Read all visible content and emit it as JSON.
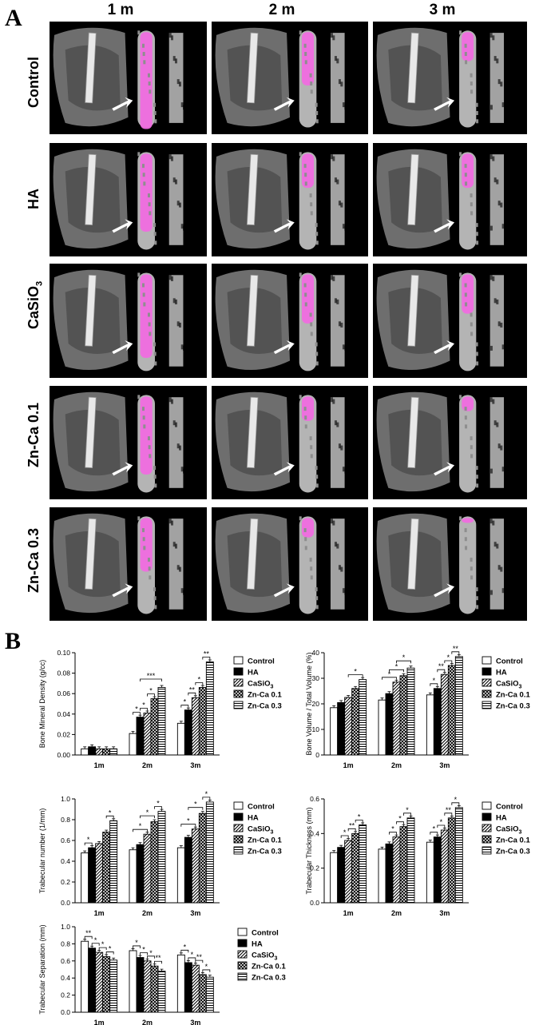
{
  "panel_a": {
    "letter": "A",
    "columns": [
      "1 m",
      "2 m",
      "3 m"
    ],
    "rows": [
      "Control",
      "HA",
      "CaSiO",
      "Zn-Ca 0.1",
      "Zn-Ca 0.3"
    ],
    "row_sub": [
      "",
      "",
      "3",
      "",
      ""
    ]
  },
  "panel_b": {
    "letter": "B"
  },
  "colors": {
    "implant_pink": "#f06de0",
    "bone_gray": "#b4b4b4",
    "background": "#000000"
  },
  "chart_data": [
    {
      "type": "bar",
      "ylabel": "Bone Mineral Density (g/cc)",
      "categories": [
        "1m",
        "2m",
        "3m"
      ],
      "ylim": [
        0,
        0.1
      ],
      "yticks": [
        "0.00",
        "0.02",
        "0.04",
        "0.06",
        "0.08",
        "0.10"
      ],
      "ytick_values": [
        0,
        0.02,
        0.04,
        0.06,
        0.08,
        0.1
      ],
      "legend_position": "right",
      "series": [
        {
          "name": "Control",
          "sub": "",
          "values": [
            0.006,
            0.021,
            0.031
          ]
        },
        {
          "name": "HA",
          "sub": "",
          "values": [
            0.008,
            0.037,
            0.044
          ]
        },
        {
          "name": "CaSiO",
          "sub": "3",
          "values": [
            0.006,
            0.041,
            0.056
          ]
        },
        {
          "name": "Zn-Ca 0.1",
          "sub": "",
          "values": [
            0.006,
            0.055,
            0.066
          ]
        },
        {
          "name": "Zn-Ca 0.3",
          "sub": "",
          "values": [
            0.006,
            0.066,
            0.091
          ]
        }
      ],
      "significance": [
        {
          "cat": 1,
          "from": 0,
          "to": 1,
          "label": "*"
        },
        {
          "cat": 1,
          "from": 1,
          "to": 2,
          "label": "*"
        },
        {
          "cat": 1,
          "from": 2,
          "to": 3,
          "label": "*"
        },
        {
          "cat": 1,
          "from": 1,
          "to": 4,
          "label": "***"
        },
        {
          "cat": 2,
          "from": 0,
          "to": 1,
          "label": "*"
        },
        {
          "cat": 2,
          "from": 1,
          "to": 2,
          "label": "**"
        },
        {
          "cat": 2,
          "from": 2,
          "to": 3,
          "label": "*"
        },
        {
          "cat": 2,
          "from": 3,
          "to": 4,
          "label": "**"
        }
      ]
    },
    {
      "type": "bar",
      "ylabel": "Bone Volume / Total Volume (%)",
      "categories": [
        "1m",
        "2m",
        "3m"
      ],
      "ylim": [
        0,
        40
      ],
      "yticks": [
        "0",
        "10",
        "20",
        "30",
        "40"
      ],
      "ytick_values": [
        0,
        10,
        20,
        30,
        40
      ],
      "legend_position": "right",
      "series": [
        {
          "name": "Control",
          "sub": "",
          "values": [
            18.5,
            21.5,
            23.5
          ]
        },
        {
          "name": "HA",
          "sub": "",
          "values": [
            20.5,
            24,
            26
          ]
        },
        {
          "name": "CaSiO",
          "sub": "3",
          "values": [
            22.5,
            28.5,
            31.5
          ]
        },
        {
          "name": "Zn-Ca 0.1",
          "sub": "",
          "values": [
            26,
            31,
            35
          ]
        },
        {
          "name": "Zn-Ca 0.3",
          "sub": "",
          "values": [
            29.5,
            34,
            38.5
          ]
        }
      ],
      "significance": [
        {
          "cat": 0,
          "from": 2,
          "to": 4,
          "label": "*"
        },
        {
          "cat": 1,
          "from": 0,
          "to": 2,
          "label": "*"
        },
        {
          "cat": 1,
          "from": 1,
          "to": 3,
          "label": "*"
        },
        {
          "cat": 1,
          "from": 2,
          "to": 4,
          "label": "*"
        },
        {
          "cat": 2,
          "from": 0,
          "to": 1,
          "label": "*"
        },
        {
          "cat": 2,
          "from": 1,
          "to": 2,
          "label": "**"
        },
        {
          "cat": 2,
          "from": 2,
          "to": 3,
          "label": "*"
        },
        {
          "cat": 2,
          "from": 3,
          "to": 4,
          "label": "**"
        }
      ]
    },
    {
      "type": "bar",
      "ylabel": "Trabecular number (1/mm)",
      "categories": [
        "1m",
        "2m",
        "3m"
      ],
      "ylim": [
        0,
        1.0
      ],
      "yticks": [
        "0.0",
        "0.2",
        "0.4",
        "0.6",
        "0.8",
        "1.0"
      ],
      "ytick_values": [
        0,
        0.2,
        0.4,
        0.6,
        0.8,
        1.0
      ],
      "legend_position": "right",
      "series": [
        {
          "name": "Control",
          "sub": "",
          "values": [
            0.48,
            0.51,
            0.53
          ]
        },
        {
          "name": "HA",
          "sub": "",
          "values": [
            0.53,
            0.56,
            0.63
          ]
        },
        {
          "name": "CaSiO",
          "sub": "3",
          "values": [
            0.57,
            0.66,
            0.71
          ]
        },
        {
          "name": "Zn-Ca 0.1",
          "sub": "",
          "values": [
            0.68,
            0.78,
            0.86
          ]
        },
        {
          "name": "Zn-Ca 0.3",
          "sub": "",
          "values": [
            0.79,
            0.88,
            0.97
          ]
        }
      ],
      "significance": [
        {
          "cat": 0,
          "from": 0,
          "to": 1,
          "label": "*"
        },
        {
          "cat": 0,
          "from": 3,
          "to": 4,
          "label": "*"
        },
        {
          "cat": 1,
          "from": 0,
          "to": 2,
          "label": "*"
        },
        {
          "cat": 1,
          "from": 1,
          "to": 3,
          "label": "*"
        },
        {
          "cat": 1,
          "from": 3,
          "to": 4,
          "label": "*"
        },
        {
          "cat": 2,
          "from": 0,
          "to": 2,
          "label": "*"
        },
        {
          "cat": 2,
          "from": 1,
          "to": 3,
          "label": "*"
        },
        {
          "cat": 2,
          "from": 3,
          "to": 4,
          "label": "*"
        }
      ]
    },
    {
      "type": "bar",
      "ylabel": "Trabecular Thickness (mm)",
      "categories": [
        "1m",
        "2m",
        "3m"
      ],
      "ylim": [
        0,
        0.6
      ],
      "yticks": [
        "0.0",
        "0.2",
        "0.4",
        "0.6"
      ],
      "ytick_values": [
        0,
        0.2,
        0.4,
        0.6
      ],
      "legend_position": "right",
      "series": [
        {
          "name": "Control",
          "sub": "",
          "values": [
            0.29,
            0.31,
            0.35
          ]
        },
        {
          "name": "HA",
          "sub": "",
          "values": [
            0.32,
            0.34,
            0.38
          ]
        },
        {
          "name": "CaSiO",
          "sub": "3",
          "values": [
            0.36,
            0.38,
            0.42
          ]
        },
        {
          "name": "Zn-Ca 0.1",
          "sub": "",
          "values": [
            0.4,
            0.44,
            0.49
          ]
        },
        {
          "name": "Zn-Ca 0.3",
          "sub": "",
          "values": [
            0.45,
            0.49,
            0.55
          ]
        }
      ],
      "significance": [
        {
          "cat": 0,
          "from": 1,
          "to": 2,
          "label": "*"
        },
        {
          "cat": 0,
          "from": 2,
          "to": 3,
          "label": "**"
        },
        {
          "cat": 0,
          "from": 3,
          "to": 4,
          "label": "*"
        },
        {
          "cat": 1,
          "from": 1,
          "to": 2,
          "label": "*"
        },
        {
          "cat": 1,
          "from": 2,
          "to": 3,
          "label": "*"
        },
        {
          "cat": 1,
          "from": 3,
          "to": 4,
          "label": "*"
        },
        {
          "cat": 2,
          "from": 0,
          "to": 1,
          "label": "*"
        },
        {
          "cat": 2,
          "from": 1,
          "to": 2,
          "label": "*"
        },
        {
          "cat": 2,
          "from": 2,
          "to": 3,
          "label": "**"
        },
        {
          "cat": 2,
          "from": 3,
          "to": 4,
          "label": "*"
        }
      ]
    },
    {
      "type": "bar",
      "ylabel": "Trabecular Separation (mm)",
      "categories": [
        "1m",
        "2m",
        "3m"
      ],
      "ylim": [
        0,
        1.0
      ],
      "yticks": [
        "0.0",
        "0.2",
        "0.4",
        "0.6",
        "0.8",
        "1.0"
      ],
      "ytick_values": [
        0,
        0.2,
        0.4,
        0.6,
        0.8,
        1.0
      ],
      "legend_position": "right",
      "series": [
        {
          "name": "Control",
          "sub": "",
          "values": [
            0.83,
            0.72,
            0.67
          ]
        },
        {
          "name": "HA",
          "sub": "",
          "values": [
            0.75,
            0.64,
            0.58
          ]
        },
        {
          "name": "CaSiO",
          "sub": "3",
          "values": [
            0.7,
            0.6,
            0.55
          ]
        },
        {
          "name": "Zn-Ca 0.1",
          "sub": "",
          "values": [
            0.65,
            0.54,
            0.44
          ]
        },
        {
          "name": "Zn-Ca 0.3",
          "sub": "",
          "values": [
            0.61,
            0.48,
            0.41
          ]
        }
      ],
      "significance": [
        {
          "cat": 0,
          "from": 0,
          "to": 1,
          "label": "**"
        },
        {
          "cat": 0,
          "from": 1,
          "to": 2,
          "label": "*"
        },
        {
          "cat": 0,
          "from": 2,
          "to": 3,
          "label": "*"
        },
        {
          "cat": 0,
          "from": 3,
          "to": 4,
          "label": "*"
        },
        {
          "cat": 1,
          "from": 0,
          "to": 1,
          "label": "*"
        },
        {
          "cat": 1,
          "from": 1,
          "to": 2,
          "label": "*"
        },
        {
          "cat": 1,
          "from": 2,
          "to": 3,
          "label": "*"
        },
        {
          "cat": 1,
          "from": 3,
          "to": 4,
          "label": "**"
        },
        {
          "cat": 2,
          "from": 0,
          "to": 1,
          "label": "*"
        },
        {
          "cat": 2,
          "from": 1,
          "to": 2,
          "label": "*"
        },
        {
          "cat": 2,
          "from": 2,
          "to": 3,
          "label": "**"
        },
        {
          "cat": 2,
          "from": 3,
          "to": 4,
          "label": "*"
        }
      ]
    }
  ]
}
